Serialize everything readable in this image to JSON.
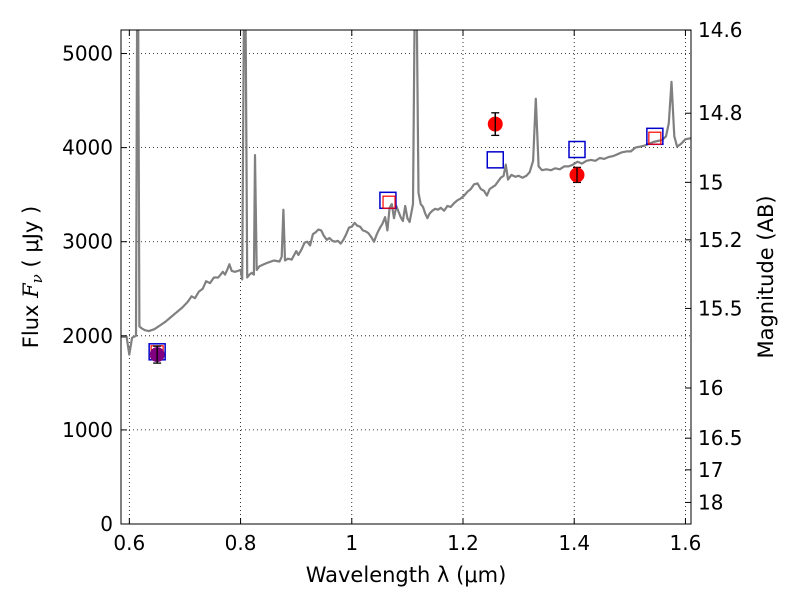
{
  "chart_data": {
    "type": "line",
    "xlabel": "Wavelength  λ (μm)",
    "ylabel": "Flux  Fν  ( μJy )",
    "y2label": "Magnitude (AB)",
    "xlim": [
      0.585,
      1.61
    ],
    "ylim": [
      0,
      5250
    ],
    "grid": true,
    "x_ticks": [
      {
        "v": 0.6,
        "label": "0.6"
      },
      {
        "v": 0.8,
        "label": "0.8"
      },
      {
        "v": 1.0,
        "label": "1"
      },
      {
        "v": 1.2,
        "label": "1.2"
      },
      {
        "v": 1.4,
        "label": "1.4"
      },
      {
        "v": 1.6,
        "label": "1.6"
      }
    ],
    "y_ticks": [
      {
        "v": 0,
        "label": "0"
      },
      {
        "v": 1000,
        "label": "1000"
      },
      {
        "v": 2000,
        "label": "2000"
      },
      {
        "v": 3000,
        "label": "3000"
      },
      {
        "v": 4000,
        "label": "4000"
      },
      {
        "v": 5000,
        "label": "5000"
      }
    ],
    "y2_ticks": [
      {
        "v": 14.6,
        "label": "14.6"
      },
      {
        "v": 14.8,
        "label": "14.8"
      },
      {
        "v": 15.0,
        "label": "15"
      },
      {
        "v": 15.2,
        "label": "15.2"
      },
      {
        "v": 15.5,
        "label": "15.5"
      },
      {
        "v": 16.0,
        "label": "16"
      },
      {
        "v": 16.5,
        "label": "16.5"
      },
      {
        "v": 17.0,
        "label": "17"
      },
      {
        "v": 18.0,
        "label": "18"
      }
    ],
    "series": [
      {
        "kind": "spectrum",
        "color": "#808080",
        "points": [
          [
            0.585,
            1990
          ],
          [
            0.595,
            1990
          ],
          [
            0.6,
            1800
          ],
          [
            0.605,
            1980
          ],
          [
            0.612,
            2000
          ],
          [
            0.614,
            5400
          ],
          [
            0.616,
            5400
          ],
          [
            0.618,
            2100
          ],
          [
            0.622,
            2080
          ],
          [
            0.628,
            2060
          ],
          [
            0.635,
            2050
          ],
          [
            0.645,
            2070
          ],
          [
            0.655,
            2110
          ],
          [
            0.665,
            2150
          ],
          [
            0.675,
            2200
          ],
          [
            0.685,
            2250
          ],
          [
            0.695,
            2300
          ],
          [
            0.705,
            2360
          ],
          [
            0.712,
            2420
          ],
          [
            0.718,
            2400
          ],
          [
            0.725,
            2470
          ],
          [
            0.732,
            2500
          ],
          [
            0.738,
            2580
          ],
          [
            0.745,
            2560
          ],
          [
            0.752,
            2620
          ],
          [
            0.76,
            2620
          ],
          [
            0.768,
            2680
          ],
          [
            0.772,
            2650
          ],
          [
            0.776,
            2700
          ],
          [
            0.78,
            2760
          ],
          [
            0.784,
            2690
          ],
          [
            0.79,
            2680
          ],
          [
            0.795,
            2690
          ],
          [
            0.8,
            2700
          ],
          [
            0.803,
            2600
          ],
          [
            0.806,
            5400
          ],
          [
            0.809,
            5400
          ],
          [
            0.812,
            2620
          ],
          [
            0.816,
            2650
          ],
          [
            0.82,
            2670
          ],
          [
            0.824,
            2650
          ],
          [
            0.826,
            3920
          ],
          [
            0.829,
            2700
          ],
          [
            0.834,
            2740
          ],
          [
            0.842,
            2760
          ],
          [
            0.85,
            2780
          ],
          [
            0.86,
            2800
          ],
          [
            0.87,
            2790
          ],
          [
            0.874,
            2840
          ],
          [
            0.877,
            3340
          ],
          [
            0.88,
            2800
          ],
          [
            0.885,
            2820
          ],
          [
            0.892,
            2810
          ],
          [
            0.9,
            2900
          ],
          [
            0.904,
            2860
          ],
          [
            0.91,
            2920
          ],
          [
            0.915,
            2990
          ],
          [
            0.92,
            3000
          ],
          [
            0.925,
            2960
          ],
          [
            0.93,
            3080
          ],
          [
            0.935,
            3100
          ],
          [
            0.94,
            3130
          ],
          [
            0.945,
            3120
          ],
          [
            0.95,
            3060
          ],
          [
            0.955,
            3020
          ],
          [
            0.96,
            3040
          ],
          [
            0.965,
            3010
          ],
          [
            0.97,
            3000
          ],
          [
            0.975,
            3010
          ],
          [
            0.98,
            2980
          ],
          [
            0.985,
            3020
          ],
          [
            0.99,
            3080
          ],
          [
            0.995,
            3150
          ],
          [
            1.0,
            3160
          ],
          [
            1.005,
            3200
          ],
          [
            1.01,
            3170
          ],
          [
            1.015,
            3160
          ],
          [
            1.02,
            3120
          ],
          [
            1.025,
            3110
          ],
          [
            1.03,
            3090
          ],
          [
            1.035,
            3050
          ],
          [
            1.04,
            3000
          ],
          [
            1.045,
            3080
          ],
          [
            1.05,
            3140
          ],
          [
            1.055,
            3190
          ],
          [
            1.06,
            3260
          ],
          [
            1.064,
            3120
          ],
          [
            1.068,
            3360
          ],
          [
            1.072,
            3400
          ],
          [
            1.076,
            3250
          ],
          [
            1.08,
            3380
          ],
          [
            1.084,
            3320
          ],
          [
            1.088,
            3260
          ],
          [
            1.092,
            3220
          ],
          [
            1.096,
            3380
          ],
          [
            1.1,
            3250
          ],
          [
            1.104,
            3210
          ],
          [
            1.11,
            3400
          ],
          [
            1.113,
            5400
          ],
          [
            1.117,
            5400
          ],
          [
            1.12,
            3520
          ],
          [
            1.124,
            3400
          ],
          [
            1.128,
            3370
          ],
          [
            1.132,
            3300
          ],
          [
            1.136,
            3250
          ],
          [
            1.14,
            3300
          ],
          [
            1.145,
            3330
          ],
          [
            1.15,
            3350
          ],
          [
            1.155,
            3340
          ],
          [
            1.16,
            3360
          ],
          [
            1.166,
            3330
          ],
          [
            1.172,
            3380
          ],
          [
            1.178,
            3370
          ],
          [
            1.184,
            3410
          ],
          [
            1.19,
            3440
          ],
          [
            1.196,
            3460
          ],
          [
            1.202,
            3490
          ],
          [
            1.208,
            3530
          ],
          [
            1.214,
            3560
          ],
          [
            1.22,
            3610
          ],
          [
            1.226,
            3620
          ],
          [
            1.232,
            3560
          ],
          [
            1.238,
            3540
          ],
          [
            1.243,
            3490
          ],
          [
            1.248,
            3560
          ],
          [
            1.253,
            3580
          ],
          [
            1.258,
            3600
          ],
          [
            1.263,
            3640
          ],
          [
            1.268,
            3680
          ],
          [
            1.273,
            3700
          ],
          [
            1.277,
            3820
          ],
          [
            1.281,
            3660
          ],
          [
            1.287,
            3710
          ],
          [
            1.294,
            3690
          ],
          [
            1.3,
            3700
          ],
          [
            1.307,
            3680
          ],
          [
            1.314,
            3700
          ],
          [
            1.32,
            3740
          ],
          [
            1.326,
            3860
          ],
          [
            1.331,
            4520
          ],
          [
            1.336,
            3800
          ],
          [
            1.342,
            3760
          ],
          [
            1.35,
            3770
          ],
          [
            1.358,
            3760
          ],
          [
            1.366,
            3780
          ],
          [
            1.374,
            3770
          ],
          [
            1.382,
            3800
          ],
          [
            1.39,
            3800
          ],
          [
            1.398,
            3820
          ],
          [
            1.406,
            3850
          ],
          [
            1.414,
            3830
          ],
          [
            1.422,
            3860
          ],
          [
            1.43,
            3870
          ],
          [
            1.438,
            3860
          ],
          [
            1.446,
            3890
          ],
          [
            1.454,
            3880
          ],
          [
            1.462,
            3900
          ],
          [
            1.47,
            3910
          ],
          [
            1.478,
            3930
          ],
          [
            1.486,
            3950
          ],
          [
            1.494,
            3960
          ],
          [
            1.502,
            3960
          ],
          [
            1.51,
            4000
          ],
          [
            1.518,
            4010
          ],
          [
            1.526,
            4020
          ],
          [
            1.534,
            4040
          ],
          [
            1.542,
            4060
          ],
          [
            1.55,
            4070
          ],
          [
            1.558,
            4080
          ],
          [
            1.565,
            4120
          ],
          [
            1.57,
            4260
          ],
          [
            1.575,
            4700
          ],
          [
            1.58,
            4120
          ],
          [
            1.585,
            4010
          ],
          [
            1.592,
            4040
          ],
          [
            1.6,
            4090
          ],
          [
            1.61,
            4100
          ]
        ]
      },
      {
        "kind": "observed",
        "marker": "circle",
        "color": "#ff0000",
        "points": [
          {
            "x": 0.65,
            "y": 1800,
            "err": 90,
            "color": "#800080"
          },
          {
            "x": 1.258,
            "y": 4250,
            "err": 120
          },
          {
            "x": 1.405,
            "y": 3710,
            "err": 80
          }
        ]
      },
      {
        "kind": "synthetic",
        "marker": "square",
        "color": "#0000cc",
        "points": [
          {
            "x": 0.65,
            "y": 1830
          },
          {
            "x": 1.065,
            "y": 3440
          },
          {
            "x": 1.258,
            "y": 3870
          },
          {
            "x": 1.405,
            "y": 3980
          },
          {
            "x": 1.545,
            "y": 4120
          }
        ]
      },
      {
        "kind": "synthetic-inner",
        "marker": "square",
        "color": "#ff0000",
        "points": [
          {
            "x": 0.65,
            "y": 1830
          },
          {
            "x": 1.067,
            "y": 3420
          },
          {
            "x": 1.545,
            "y": 4100
          }
        ]
      }
    ]
  }
}
